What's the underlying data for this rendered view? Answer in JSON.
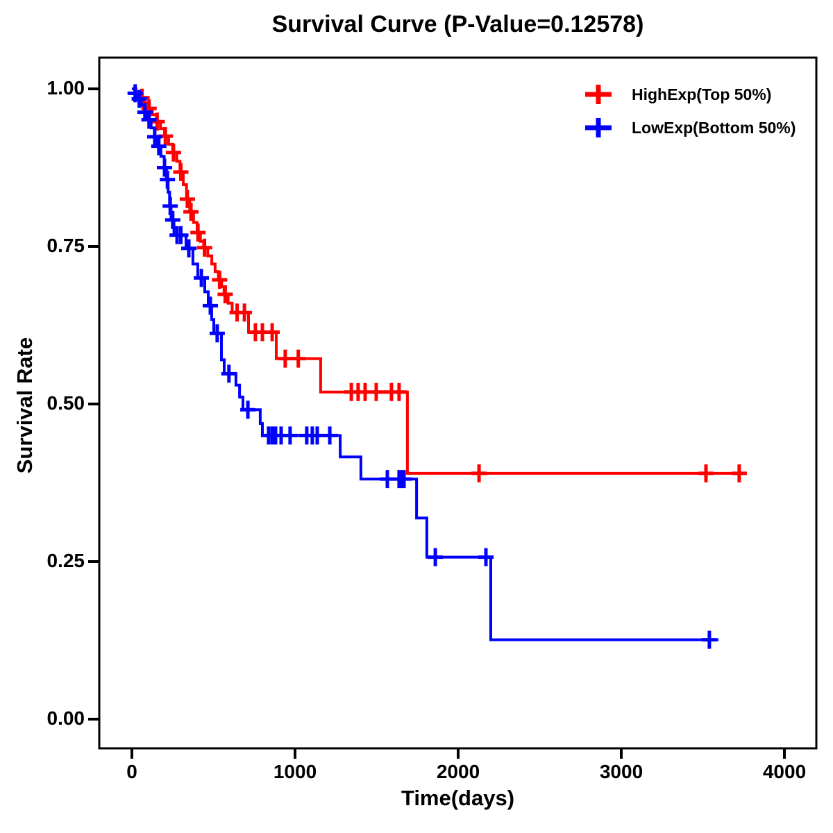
{
  "chart_data": {
    "type": "line",
    "subtype": "kaplan-meier-step-curve",
    "title": "Survival Curve (P-Value=0.12578)",
    "p_value": "0.12578",
    "xlabel": "Time(days)",
    "ylabel": "Survival Rate",
    "xlim": [
      0,
      4000
    ],
    "ylim": [
      0.0,
      1.0
    ],
    "grid": false,
    "legend_position": "top-right",
    "x_ticks": [
      {
        "label": "0",
        "value": 0
      },
      {
        "label": "1000",
        "value": 1000
      },
      {
        "label": "2000",
        "value": 2000
      },
      {
        "label": "3000",
        "value": 3000
      },
      {
        "label": "4000",
        "value": 4000
      }
    ],
    "y_ticks": [
      {
        "label": "0.00",
        "value": 0.0
      },
      {
        "label": "0.25",
        "value": 0.25
      },
      {
        "label": "0.50",
        "value": 0.5
      },
      {
        "label": "0.75",
        "value": 0.75
      },
      {
        "label": "1.00",
        "value": 1.0
      }
    ],
    "series": [
      {
        "name": "HighExp(Top 50%)",
        "color": "#FF0000",
        "end_time": 3760,
        "steps": [
          [
            0,
            1.0
          ],
          [
            25,
            0.993
          ],
          [
            50,
            0.986
          ],
          [
            75,
            0.978
          ],
          [
            100,
            0.969
          ],
          [
            125,
            0.959
          ],
          [
            150,
            0.948
          ],
          [
            175,
            0.937
          ],
          [
            200,
            0.925
          ],
          [
            225,
            0.912
          ],
          [
            250,
            0.899
          ],
          [
            275,
            0.885
          ],
          [
            295,
            0.868
          ],
          [
            315,
            0.848
          ],
          [
            335,
            0.825
          ],
          [
            355,
            0.805
          ],
          [
            378,
            0.788
          ],
          [
            400,
            0.772
          ],
          [
            420,
            0.758
          ],
          [
            440,
            0.748
          ],
          [
            465,
            0.735
          ],
          [
            490,
            0.722
          ],
          [
            510,
            0.71
          ],
          [
            530,
            0.697
          ],
          [
            550,
            0.686
          ],
          [
            565,
            0.674
          ],
          [
            590,
            0.66
          ],
          [
            615,
            0.645
          ],
          [
            715,
            0.614
          ],
          [
            885,
            0.572
          ],
          [
            1157,
            0.519
          ],
          [
            1689,
            0.39
          ]
        ],
        "censors": [
          [
            62,
            0.986
          ],
          [
            105,
            0.969
          ],
          [
            155,
            0.948
          ],
          [
            205,
            0.925
          ],
          [
            255,
            0.899
          ],
          [
            300,
            0.868
          ],
          [
            340,
            0.825
          ],
          [
            362,
            0.805
          ],
          [
            405,
            0.772
          ],
          [
            445,
            0.748
          ],
          [
            538,
            0.697
          ],
          [
            572,
            0.674
          ],
          [
            645,
            0.645
          ],
          [
            690,
            0.645
          ],
          [
            757,
            0.614
          ],
          [
            800,
            0.614
          ],
          [
            860,
            0.614
          ],
          [
            940,
            0.572
          ],
          [
            1020,
            0.572
          ],
          [
            1345,
            0.519
          ],
          [
            1387,
            0.519
          ],
          [
            1430,
            0.519
          ],
          [
            1498,
            0.519
          ],
          [
            1591,
            0.519
          ],
          [
            1638,
            0.519
          ],
          [
            2128,
            0.39
          ],
          [
            3519,
            0.39
          ],
          [
            3723,
            0.39
          ]
        ]
      },
      {
        "name": "LowExp(Bottom 50%)",
        "color": "#0000FF",
        "end_time": 3596,
        "steps": [
          [
            0,
            1.0
          ],
          [
            18,
            0.993
          ],
          [
            38,
            0.984
          ],
          [
            58,
            0.974
          ],
          [
            78,
            0.963
          ],
          [
            98,
            0.951
          ],
          [
            118,
            0.938
          ],
          [
            138,
            0.924
          ],
          [
            158,
            0.909
          ],
          [
            178,
            0.893
          ],
          [
            198,
            0.875
          ],
          [
            212,
            0.856
          ],
          [
            222,
            0.836
          ],
          [
            231,
            0.814
          ],
          [
            240,
            0.792
          ],
          [
            258,
            0.768
          ],
          [
            332,
            0.747
          ],
          [
            374,
            0.722
          ],
          [
            404,
            0.7
          ],
          [
            447,
            0.678
          ],
          [
            468,
            0.656
          ],
          [
            489,
            0.634
          ],
          [
            502,
            0.612
          ],
          [
            549,
            0.57
          ],
          [
            566,
            0.548
          ],
          [
            638,
            0.53
          ],
          [
            660,
            0.511
          ],
          [
            681,
            0.491
          ],
          [
            787,
            0.469
          ],
          [
            800,
            0.45
          ],
          [
            1277,
            0.416
          ],
          [
            1404,
            0.381
          ],
          [
            1745,
            0.319
          ],
          [
            1808,
            0.257
          ],
          [
            2200,
            0.126
          ]
        ],
        "censors": [
          [
            20,
            0.993
          ],
          [
            45,
            0.984
          ],
          [
            80,
            0.963
          ],
          [
            105,
            0.951
          ],
          [
            140,
            0.924
          ],
          [
            165,
            0.909
          ],
          [
            200,
            0.875
          ],
          [
            218,
            0.856
          ],
          [
            235,
            0.814
          ],
          [
            250,
            0.792
          ],
          [
            277,
            0.768
          ],
          [
            300,
            0.768
          ],
          [
            349,
            0.747
          ],
          [
            426,
            0.7
          ],
          [
            481,
            0.656
          ],
          [
            523,
            0.612
          ],
          [
            595,
            0.548
          ],
          [
            711,
            0.491
          ],
          [
            838,
            0.45
          ],
          [
            860,
            0.45
          ],
          [
            881,
            0.45
          ],
          [
            915,
            0.45
          ],
          [
            970,
            0.45
          ],
          [
            1072,
            0.45
          ],
          [
            1106,
            0.45
          ],
          [
            1136,
            0.45
          ],
          [
            1213,
            0.45
          ],
          [
            1566,
            0.381
          ],
          [
            1638,
            0.381
          ],
          [
            1653,
            0.381
          ],
          [
            1668,
            0.381
          ],
          [
            1860,
            0.257
          ],
          [
            2170,
            0.257
          ],
          [
            3540,
            0.126
          ]
        ]
      }
    ]
  }
}
